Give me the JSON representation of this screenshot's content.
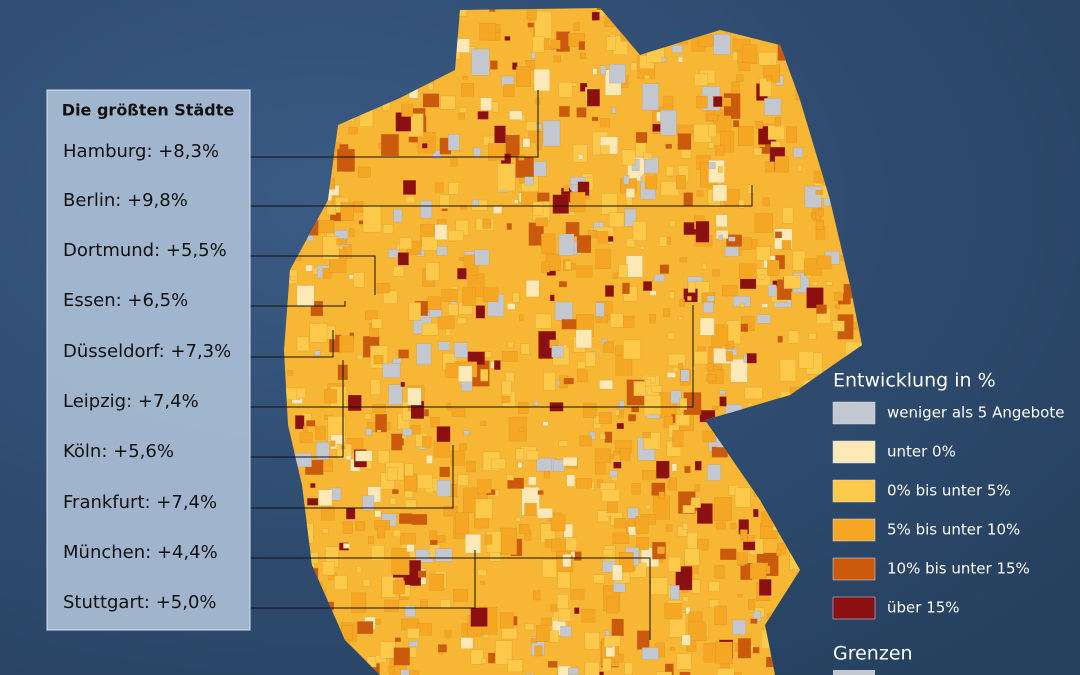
{
  "panel": {
    "title": "Die größten Städte",
    "cities": [
      "Hamburg: +8,3%",
      "Berlin: +9,8%",
      "Dortmund: +5,5%",
      "Essen: +6,5%",
      "Düsseldorf: +7,3%",
      "Leipzig: +7,4%",
      "Köln: +5,6%",
      "Frankfurt: +7,4%",
      "München: +4,4%",
      "Stuttgart: +5,0%"
    ]
  },
  "legend": {
    "title": "Entwicklung in %",
    "items": [
      {
        "label": "weniger als 5 Angebote",
        "color": "#c3c7cf"
      },
      {
        "label": "unter 0%",
        "color": "#fde9b8"
      },
      {
        "label": "0% bis unter 5%",
        "color": "#fcc94a"
      },
      {
        "label": "5% bis unter 10%",
        "color": "#f5a623"
      },
      {
        "label": "10% bis unter 15%",
        "color": "#cc5a0c"
      },
      {
        "label": "über 15%",
        "color": "#8c1010"
      }
    ],
    "borders_title": "Grenzen"
  }
}
